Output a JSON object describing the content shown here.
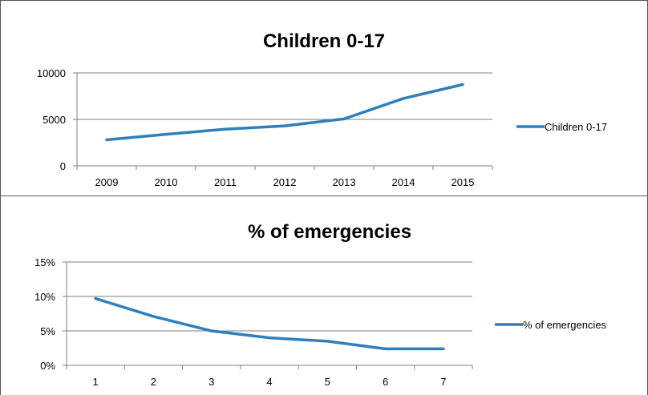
{
  "chart_data": [
    {
      "type": "line",
      "title": "Children 0-17",
      "xlabel": "",
      "ylabel": "",
      "categories": [
        "2009",
        "2010",
        "2011",
        "2012",
        "2013",
        "2014",
        "2015"
      ],
      "series": [
        {
          "name": "Children 0-17",
          "values": [
            2800,
            3400,
            3950,
            4300,
            5050,
            7250,
            8750
          ]
        }
      ],
      "ylim": [
        0,
        10000
      ],
      "yticks": [
        "0",
        "5000",
        "10000"
      ],
      "grid": true,
      "legend": "right",
      "color": "#2e7fbc"
    },
    {
      "type": "line",
      "title": "% of emergencies",
      "xlabel": "",
      "ylabel": "",
      "categories": [
        "1",
        "2",
        "3",
        "4",
        "5",
        "6",
        "7"
      ],
      "series": [
        {
          "name": "% of emergencies",
          "values": [
            9.7,
            7.1,
            5.0,
            4.0,
            3.5,
            2.4,
            2.4
          ]
        }
      ],
      "ylim": [
        0,
        15
      ],
      "yticks": [
        "0%",
        "5%",
        "10%",
        "15%"
      ],
      "grid": true,
      "legend": "right",
      "color": "#2e7fbc"
    }
  ]
}
